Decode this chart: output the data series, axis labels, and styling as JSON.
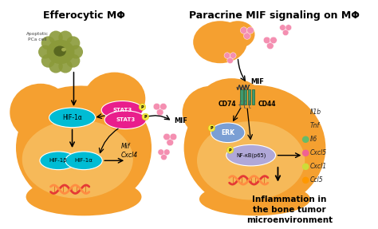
{
  "bg_color": "#ffffff",
  "title_left": "Efferocytic MΦ",
  "title_right": "Paracrine MIF signaling on MΦ",
  "macro_orange": "#f5a030",
  "macro_orange_dark": "#f09010",
  "macro_inner": "#f8c870",
  "hif_color": "#00bcd4",
  "stat3_color": "#e91e8c",
  "erk_color": "#7b9fd4",
  "nfkb_color": "#b0a8d8",
  "apop_color": "#8b9a3a",
  "apop_inner": "#5a6820",
  "receptor_color": "#3d9970",
  "mif_blob_color": "#f48fb1",
  "dna_red": "#e53935",
  "dna_orange": "#ff8c42",
  "p_color": "#f5e642",
  "gene_labels": [
    "Il1b",
    "Tnf",
    "Il6",
    "Cxcl5",
    "Cxcl1",
    "Ccl5"
  ],
  "gene_dot_colors": [
    "none",
    "none",
    "#66bb6a",
    "#f06292",
    "#cddc39",
    "#ff9800"
  ],
  "gene_text_colors": [
    "#222222",
    "#222222",
    "#222222",
    "#222222",
    "#222222",
    "#222222"
  ],
  "inflammation_text": "Inflammation in\nthe bone tumor\nmicroenvironment"
}
